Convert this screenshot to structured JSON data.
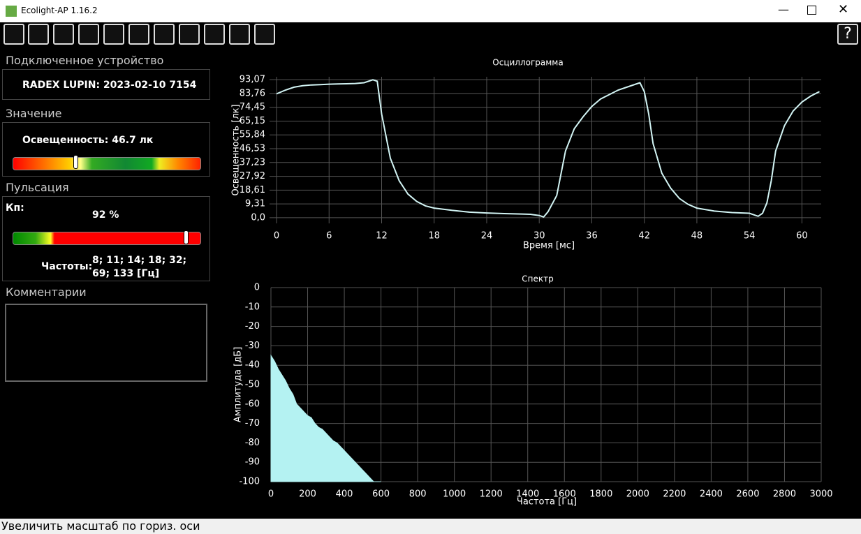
{
  "window": {
    "title": "Ecolight-AP 1.16.2"
  },
  "device": {
    "heading": "Подключенное устройство",
    "name": "RADEX LUPIN: 2023-02-10 7154"
  },
  "value": {
    "heading": "Значение",
    "text": "Освещенность: 46.7 лк"
  },
  "pulsation": {
    "heading": "Пульсация",
    "kp_label": "Кп:",
    "kp": {
      "value": 92,
      "label": "92 %"
    },
    "frequencies_label": "Частоты:",
    "frequencies": "8; 11; 14; 18; 32; 69; 133 [Гц]"
  },
  "comments": {
    "heading": "Комментарии"
  },
  "status": "Увеличить масштаб по гориз. оси",
  "chart_data": [
    {
      "type": "line",
      "title": "Осциллограмма",
      "x_label": "Время [мс]",
      "y_label": "Освещенность [лк]",
      "color": "#d2f4f4",
      "grid": true,
      "x": [
        0,
        1,
        2,
        3,
        4,
        5,
        6,
        7,
        8,
        9,
        10,
        11,
        11.5,
        12,
        12.5,
        13,
        14,
        15,
        16,
        17,
        18,
        20,
        22,
        24,
        26,
        28,
        29,
        30,
        30.5,
        31,
        32,
        32.5,
        33,
        34,
        35,
        36,
        37,
        38,
        39,
        40,
        41,
        41.5,
        42,
        42.5,
        43,
        44,
        45,
        46,
        47,
        48,
        50,
        52,
        54,
        54.5,
        55,
        55.5,
        56,
        56.5,
        57,
        58,
        59,
        60,
        61,
        62
      ],
      "values": [
        83.5,
        86,
        88,
        89,
        89.5,
        89.7,
        90,
        90.2,
        90.3,
        90.5,
        91,
        93,
        92,
        70,
        55,
        40,
        25,
        16,
        11,
        8,
        6.5,
        5,
        3.8,
        3.2,
        2.8,
        2.5,
        2.3,
        1.5,
        0.5,
        4,
        15,
        30,
        45,
        60,
        68,
        75,
        80,
        83,
        86,
        88,
        90,
        91,
        85,
        70,
        50,
        30,
        20,
        13,
        9,
        6.5,
        4.5,
        3.5,
        3,
        2,
        1,
        3,
        10,
        25,
        45,
        62,
        72,
        78,
        82,
        85
      ],
      "xlim": [
        -0.8,
        62.2
      ],
      "ylim": [
        -3.8,
        95
      ],
      "xticks": [
        0,
        6,
        12,
        18,
        24,
        30,
        36,
        42,
        48,
        54,
        60
      ],
      "yticks": [
        {
          "value": 0,
          "label": "0,0"
        },
        {
          "value": 9.31,
          "label": "9,31"
        },
        {
          "value": 18.61,
          "label": "18,61"
        },
        {
          "value": 27.92,
          "label": "27,92"
        },
        {
          "value": 37.23,
          "label": "37,23"
        },
        {
          "value": 46.53,
          "label": "46,53"
        },
        {
          "value": 55.84,
          "label": "55,84"
        },
        {
          "value": 65.15,
          "label": "65,15"
        },
        {
          "value": 74.45,
          "label": "74,45"
        },
        {
          "value": 83.76,
          "label": "83,76"
        },
        {
          "value": 93.07,
          "label": "93,07"
        }
      ]
    },
    {
      "type": "area",
      "title": "Спектр",
      "x_label": "Частота [Гц]",
      "y_label": "Амплитуда [дБ]",
      "color": "#b4f2f2",
      "grid": true,
      "x": [
        0,
        20,
        40,
        60,
        80,
        100,
        120,
        140,
        160,
        180,
        200,
        220,
        240,
        260,
        280,
        300,
        320,
        340,
        360,
        380,
        400,
        420,
        440,
        460,
        480,
        500,
        520,
        540,
        560,
        580,
        600
      ],
      "values": [
        -35,
        -38,
        -42,
        -45,
        -48,
        -52,
        -55,
        -60,
        -62,
        -64,
        -66,
        -67,
        -70,
        -72,
        -73,
        -75,
        -77,
        -79,
        -80,
        -82,
        -84,
        -86,
        -88,
        -90,
        -92,
        -94,
        -96,
        -98,
        -100,
        -100,
        -100
      ],
      "xlim": [
        0,
        3000
      ],
      "ylim": [
        -100,
        0
      ],
      "xticks": [
        0,
        200,
        400,
        600,
        800,
        1000,
        1200,
        1400,
        1600,
        1800,
        2000,
        2200,
        2400,
        2600,
        2800,
        3000
      ],
      "yticks": [
        -100,
        -90,
        -80,
        -70,
        -60,
        -50,
        -40,
        -30,
        -20,
        -10,
        0
      ]
    }
  ]
}
